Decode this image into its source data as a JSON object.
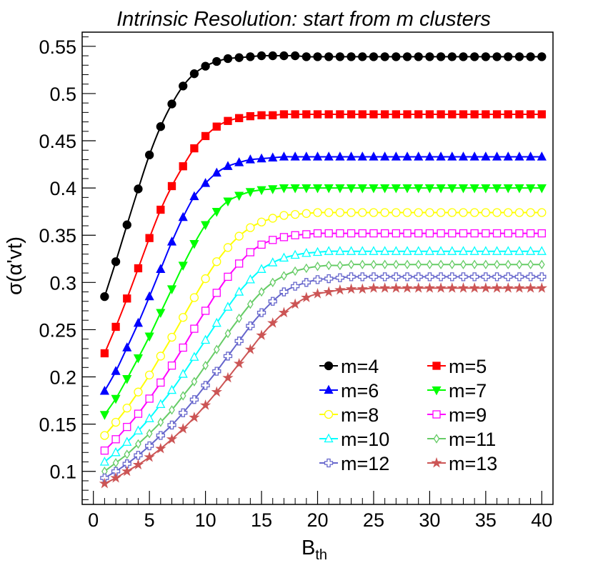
{
  "chart_data": {
    "type": "line",
    "title": "Intrinsic Resolution: start from m clusters",
    "xlabel": {
      "main": "B",
      "sub": "th"
    },
    "ylabel": "σ(α'vt)",
    "xlim": [
      -1,
      41
    ],
    "ylim": [
      0.065,
      0.565
    ],
    "x_ticks": [
      0,
      5,
      10,
      15,
      20,
      25,
      30,
      35,
      40
    ],
    "x_tick_labels": [
      "0",
      "5",
      "10",
      "15",
      "20",
      "25",
      "30",
      "35",
      "40"
    ],
    "y_ticks": [
      0.1,
      0.15,
      0.2,
      0.25,
      0.3,
      0.35,
      0.4,
      0.45,
      0.5,
      0.55
    ],
    "y_tick_labels": [
      "0.1",
      "0.15",
      "0.2",
      "0.25",
      "0.3",
      "0.35",
      "0.4",
      "0.45",
      "0.5",
      "0.55"
    ],
    "x_minor_step": 1,
    "y_minor_step": 0.01,
    "grid": false,
    "legend_position": "bottom-right",
    "x": [
      1,
      2,
      3,
      4,
      5,
      6,
      7,
      8,
      9,
      10,
      11,
      12,
      13,
      14,
      15,
      16,
      17,
      18,
      19,
      20,
      21,
      22,
      23,
      24,
      25,
      26,
      27,
      28,
      29,
      30,
      31,
      32,
      33,
      34,
      35,
      36,
      37,
      38,
      39,
      40
    ],
    "series": [
      {
        "name": "m=4",
        "color": "#000000",
        "marker": "filled-circle",
        "values": [
          0.285,
          0.322,
          0.361,
          0.399,
          0.435,
          0.465,
          0.489,
          0.508,
          0.521,
          0.529,
          0.534,
          0.537,
          0.538,
          0.539,
          0.54,
          0.54,
          0.54,
          0.54,
          0.539,
          0.539,
          0.539,
          0.539,
          0.539,
          0.539,
          0.539,
          0.539,
          0.539,
          0.539,
          0.539,
          0.539,
          0.539,
          0.539,
          0.539,
          0.539,
          0.539,
          0.539,
          0.539,
          0.539,
          0.539,
          0.539
        ]
      },
      {
        "name": "m=5",
        "color": "#ff0000",
        "marker": "filled-square",
        "values": [
          0.225,
          0.253,
          0.283,
          0.315,
          0.347,
          0.377,
          0.402,
          0.423,
          0.442,
          0.455,
          0.465,
          0.471,
          0.474,
          0.476,
          0.477,
          0.477,
          0.478,
          0.478,
          0.478,
          0.478,
          0.478,
          0.478,
          0.478,
          0.478,
          0.478,
          0.478,
          0.478,
          0.478,
          0.478,
          0.478,
          0.478,
          0.478,
          0.478,
          0.478,
          0.478,
          0.478,
          0.478,
          0.478,
          0.478,
          0.478
        ]
      },
      {
        "name": "m=6",
        "color": "#0000ff",
        "marker": "filled-triangle-up",
        "values": [
          0.185,
          0.206,
          0.231,
          0.257,
          0.285,
          0.314,
          0.343,
          0.369,
          0.391,
          0.405,
          0.416,
          0.423,
          0.427,
          0.43,
          0.431,
          0.432,
          0.433,
          0.433,
          0.433,
          0.433,
          0.433,
          0.433,
          0.433,
          0.433,
          0.433,
          0.433,
          0.433,
          0.433,
          0.433,
          0.433,
          0.433,
          0.433,
          0.433,
          0.433,
          0.433,
          0.433,
          0.433,
          0.433,
          0.433,
          0.433
        ]
      },
      {
        "name": "m=7",
        "color": "#00ff00",
        "marker": "filled-triangle-down",
        "values": [
          0.16,
          0.177,
          0.198,
          0.22,
          0.243,
          0.268,
          0.293,
          0.318,
          0.341,
          0.361,
          0.375,
          0.386,
          0.392,
          0.396,
          0.398,
          0.399,
          0.4,
          0.4,
          0.4,
          0.4,
          0.4,
          0.4,
          0.4,
          0.4,
          0.4,
          0.4,
          0.4,
          0.4,
          0.4,
          0.4,
          0.4,
          0.4,
          0.4,
          0.4,
          0.4,
          0.4,
          0.4,
          0.4,
          0.4,
          0.4
        ]
      },
      {
        "name": "m=8",
        "color": "#ffff00",
        "marker": "open-circle",
        "values": [
          0.138,
          0.152,
          0.167,
          0.184,
          0.202,
          0.222,
          0.242,
          0.263,
          0.284,
          0.304,
          0.322,
          0.337,
          0.349,
          0.358,
          0.364,
          0.368,
          0.371,
          0.372,
          0.373,
          0.374,
          0.374,
          0.374,
          0.374,
          0.374,
          0.374,
          0.374,
          0.374,
          0.374,
          0.374,
          0.374,
          0.374,
          0.374,
          0.374,
          0.374,
          0.374,
          0.374,
          0.374,
          0.374,
          0.374,
          0.374
        ]
      },
      {
        "name": "m=9",
        "color": "#ff00ff",
        "marker": "open-square",
        "values": [
          0.122,
          0.134,
          0.147,
          0.161,
          0.177,
          0.194,
          0.212,
          0.231,
          0.251,
          0.27,
          0.289,
          0.306,
          0.32,
          0.332,
          0.34,
          0.345,
          0.348,
          0.35,
          0.351,
          0.352,
          0.352,
          0.352,
          0.352,
          0.352,
          0.352,
          0.352,
          0.352,
          0.352,
          0.352,
          0.352,
          0.352,
          0.352,
          0.352,
          0.352,
          0.352,
          0.352,
          0.352,
          0.352,
          0.352,
          0.352
        ]
      },
      {
        "name": "m=10",
        "color": "#00ffff",
        "marker": "open-triangle-up",
        "values": [
          0.11,
          0.12,
          0.131,
          0.143,
          0.156,
          0.171,
          0.186,
          0.203,
          0.221,
          0.239,
          0.257,
          0.274,
          0.29,
          0.303,
          0.314,
          0.321,
          0.326,
          0.329,
          0.331,
          0.332,
          0.333,
          0.333,
          0.333,
          0.333,
          0.333,
          0.333,
          0.333,
          0.333,
          0.333,
          0.333,
          0.333,
          0.333,
          0.333,
          0.333,
          0.333,
          0.333,
          0.333,
          0.333,
          0.333,
          0.333
        ]
      },
      {
        "name": "m=11",
        "color": "#66cc66",
        "marker": "open-diamond",
        "values": [
          0.1,
          0.109,
          0.118,
          0.129,
          0.14,
          0.152,
          0.165,
          0.18,
          0.195,
          0.212,
          0.229,
          0.246,
          0.262,
          0.277,
          0.29,
          0.3,
          0.307,
          0.312,
          0.315,
          0.317,
          0.318,
          0.318,
          0.319,
          0.319,
          0.319,
          0.319,
          0.319,
          0.319,
          0.319,
          0.319,
          0.319,
          0.319,
          0.319,
          0.319,
          0.319,
          0.319,
          0.319,
          0.319,
          0.319,
          0.319
        ]
      },
      {
        "name": "m=12",
        "color": "#6666cc",
        "marker": "open-cross",
        "values": [
          0.093,
          0.1,
          0.108,
          0.117,
          0.127,
          0.138,
          0.149,
          0.162,
          0.176,
          0.191,
          0.206,
          0.222,
          0.238,
          0.254,
          0.268,
          0.28,
          0.29,
          0.296,
          0.3,
          0.303,
          0.304,
          0.305,
          0.306,
          0.306,
          0.306,
          0.306,
          0.306,
          0.306,
          0.306,
          0.306,
          0.306,
          0.306,
          0.306,
          0.306,
          0.306,
          0.306,
          0.306,
          0.306,
          0.306,
          0.306
        ]
      },
      {
        "name": "m=13",
        "color": "#cc5555",
        "marker": "filled-star",
        "values": [
          0.087,
          0.093,
          0.1,
          0.107,
          0.115,
          0.124,
          0.134,
          0.145,
          0.157,
          0.17,
          0.184,
          0.199,
          0.214,
          0.229,
          0.244,
          0.257,
          0.268,
          0.277,
          0.284,
          0.288,
          0.29,
          0.292,
          0.293,
          0.293,
          0.294,
          0.294,
          0.294,
          0.294,
          0.294,
          0.294,
          0.294,
          0.294,
          0.294,
          0.294,
          0.294,
          0.294,
          0.294,
          0.294,
          0.294,
          0.294
        ]
      }
    ]
  }
}
